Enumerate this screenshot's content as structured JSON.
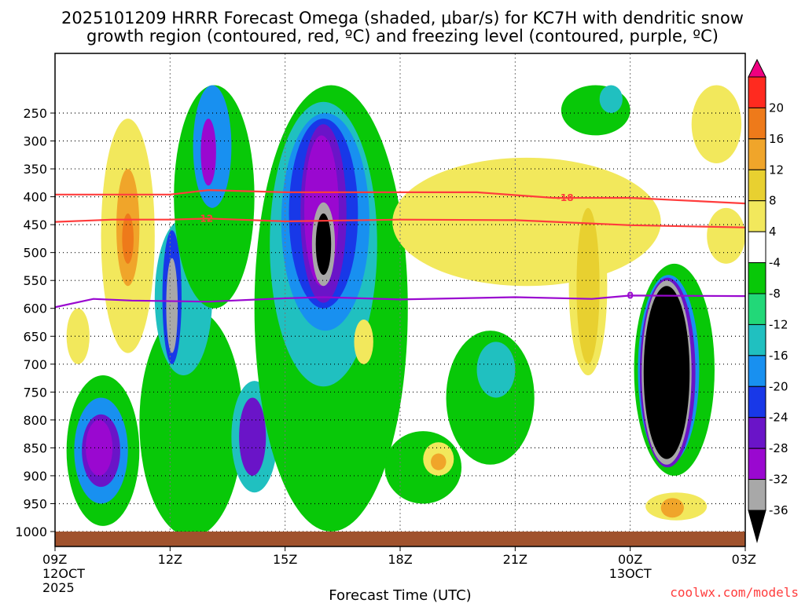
{
  "chart_data": {
    "type": "heatmap",
    "title_line1": "2025101209 HRRR Forecast Omega (shaded, μbar/s) for KC7H with dendritic snow",
    "title_line2": "growth region (contoured, red, ºC) and freezing level (contoured, purple, ºC)",
    "xlabel": "Forecast Time (UTC)",
    "ylabel": "",
    "credit": "coolwx.com/models",
    "x_ticks": [
      {
        "hour": 9,
        "label": "09Z",
        "sub1": "12OCT",
        "sub2": "2025"
      },
      {
        "hour": 12,
        "label": "12Z",
        "sub1": "",
        "sub2": ""
      },
      {
        "hour": 15,
        "label": "15Z",
        "sub1": "",
        "sub2": ""
      },
      {
        "hour": 18,
        "label": "18Z",
        "sub1": "",
        "sub2": ""
      },
      {
        "hour": 21,
        "label": "21Z",
        "sub1": "",
        "sub2": ""
      },
      {
        "hour": 24,
        "label": "00Z",
        "sub1": "13OCT",
        "sub2": ""
      },
      {
        "hour": 27,
        "label": "03Z",
        "sub1": "",
        "sub2": ""
      }
    ],
    "xlim": [
      9,
      27
    ],
    "y_ticks": [
      250,
      300,
      350,
      400,
      450,
      500,
      550,
      600,
      650,
      700,
      750,
      800,
      850,
      900,
      950,
      1000
    ],
    "ylim_hPa": [
      200,
      1020
    ],
    "colorbar": {
      "labels": [
        "20",
        "16",
        "12",
        "8",
        "4",
        "-4",
        "-8",
        "-12",
        "-16",
        "-20",
        "-24",
        "-28",
        "-32",
        "-36"
      ],
      "colors": [
        "#ef0080",
        "#ff2a1f",
        "#ee7a1a",
        "#f0a52a",
        "#e8d030",
        "#f2e85c",
        "#ffffff",
        "#08c808",
        "#22d878",
        "#20c0c0",
        "#1890f0",
        "#1838e8",
        "#6a14c8",
        "#9a08d0",
        "#a8a8a8",
        "#000000"
      ]
    },
    "contours": [
      {
        "name": "dgz-minus18",
        "label": "-18",
        "color": "#ff3c3c",
        "points": [
          [
            9,
            396
          ],
          [
            12,
            396
          ],
          [
            13,
            388
          ],
          [
            15,
            392
          ],
          [
            18,
            392
          ],
          [
            20,
            392
          ],
          [
            21,
            397
          ],
          [
            22,
            402
          ],
          [
            24,
            402
          ],
          [
            27,
            412
          ]
        ]
      },
      {
        "name": "dgz-minus12",
        "label": "-12",
        "color": "#ff3c3c",
        "points": [
          [
            9,
            445
          ],
          [
            10.5,
            441
          ],
          [
            12,
            441
          ],
          [
            13,
            439
          ],
          [
            15,
            444
          ],
          [
            16,
            443
          ],
          [
            18,
            441
          ],
          [
            21,
            442
          ],
          [
            24,
            451
          ],
          [
            27,
            455
          ]
        ]
      },
      {
        "name": "freezing-level-0",
        "label": "0",
        "color": "#9a08d0",
        "points": [
          [
            9,
            598
          ],
          [
            10,
            583
          ],
          [
            11,
            586
          ],
          [
            13,
            588
          ],
          [
            15,
            582
          ],
          [
            16,
            580
          ],
          [
            18,
            584
          ],
          [
            21,
            580
          ],
          [
            23,
            583
          ],
          [
            24,
            577
          ],
          [
            27,
            578
          ]
        ]
      }
    ],
    "blobs": [
      {
        "name": "ridge-11z",
        "x": [
          10.2,
          11.6
        ],
        "p": [
          260,
          680
        ],
        "v": 4
      },
      {
        "name": "ridge-11z-core",
        "x": [
          10.6,
          11.2
        ],
        "p": [
          350,
          560
        ],
        "v": 12
      },
      {
        "name": "ridge-11z-hot",
        "x": [
          10.75,
          11.05
        ],
        "p": [
          430,
          520
        ],
        "v": 16
      },
      {
        "name": "ridge-10z-low",
        "x": [
          9.3,
          9.9
        ],
        "p": [
          600,
          700
        ],
        "v": 4
      },
      {
        "name": "plume-12z",
        "x": [
          11.2,
          13.9
        ],
        "p": [
          600,
          1010
        ],
        "v": -8
      },
      {
        "name": "plume-12z-a",
        "x": [
          11.6,
          13.1
        ],
        "p": [
          440,
          720
        ],
        "v": -12
      },
      {
        "name": "plume-12z-b",
        "x": [
          11.8,
          12.3
        ],
        "p": [
          460,
          700
        ],
        "v": -20
      },
      {
        "name": "plume-12z-c",
        "x": [
          11.9,
          12.2
        ],
        "p": [
          510,
          680
        ],
        "v": -32
      },
      {
        "name": "plume-13z-top",
        "x": [
          12.1,
          14.2
        ],
        "p": [
          200,
          600
        ],
        "v": -8
      },
      {
        "name": "plume-13z-top-b",
        "x": [
          12.6,
          13.6
        ],
        "p": [
          200,
          420
        ],
        "v": -16
      },
      {
        "name": "plume-13z-core",
        "x": [
          12.8,
          13.2
        ],
        "p": [
          260,
          380
        ],
        "v": -28
      },
      {
        "name": "low-10z",
        "x": [
          9.3,
          11.2
        ],
        "p": [
          720,
          990
        ],
        "v": -8
      },
      {
        "name": "low-10z-a",
        "x": [
          9.5,
          10.9
        ],
        "p": [
          760,
          950
        ],
        "v": -16
      },
      {
        "name": "low-10z-b",
        "x": [
          9.7,
          10.7
        ],
        "p": [
          790,
          920
        ],
        "v": -24
      },
      {
        "name": "low-10z-c",
        "x": [
          9.8,
          10.5
        ],
        "p": [
          800,
          900
        ],
        "v": -28
      },
      {
        "name": "low-14z",
        "x": [
          13.6,
          14.8
        ],
        "p": [
          730,
          930
        ],
        "v": -12
      },
      {
        "name": "low-14z-b",
        "x": [
          13.8,
          14.5
        ],
        "p": [
          760,
          900
        ],
        "v": -24
      },
      {
        "name": "main-15z",
        "x": [
          14.2,
          18.2
        ],
        "p": [
          200,
          1000
        ],
        "v": -8
      },
      {
        "name": "main-15z-a",
        "x": [
          14.6,
          17.4
        ],
        "p": [
          230,
          740
        ],
        "v": -12
      },
      {
        "name": "main-15z-b",
        "x": [
          14.9,
          17.2
        ],
        "p": [
          250,
          640
        ],
        "v": -16
      },
      {
        "name": "main-15z-c",
        "x": [
          15.1,
          16.9
        ],
        "p": [
          260,
          600
        ],
        "v": -20
      },
      {
        "name": "main-15z-d",
        "x": [
          15.4,
          16.6
        ],
        "p": [
          270,
          590
        ],
        "v": -24
      },
      {
        "name": "main-15z-e",
        "x": [
          15.5,
          16.4
        ],
        "p": [
          290,
          560
        ],
        "v": -28
      },
      {
        "name": "main-15z-f",
        "x": [
          15.7,
          16.3
        ],
        "p": [
          410,
          560
        ],
        "v": -32
      },
      {
        "name": "main-15z-core",
        "x": [
          15.8,
          16.2
        ],
        "p": [
          430,
          540
        ],
        "v": -36
      },
      {
        "name": "dip-16z",
        "x": [
          16.8,
          17.3
        ],
        "p": [
          620,
          700
        ],
        "v": 4
      },
      {
        "name": "yellow-20z",
        "x": [
          17.8,
          24.8
        ],
        "p": [
          330,
          560
        ],
        "v": 4
      },
      {
        "name": "yellow-23z",
        "x": [
          22.4,
          23.4
        ],
        "p": [
          400,
          720
        ],
        "v": 4
      },
      {
        "name": "yellow-23z-b",
        "x": [
          22.6,
          23.2
        ],
        "p": [
          420,
          700
        ],
        "v": 8
      },
      {
        "name": "yellow-26z",
        "x": [
          25.6,
          26.9
        ],
        "p": [
          200,
          340
        ],
        "v": 4
      },
      {
        "name": "green-20z",
        "x": [
          19.2,
          21.5
        ],
        "p": [
          640,
          880
        ],
        "v": -8
      },
      {
        "name": "green-20z-b",
        "x": [
          20.0,
          21.0
        ],
        "p": [
          660,
          760
        ],
        "v": -12
      },
      {
        "name": "green-23z",
        "x": [
          22.2,
          24.0
        ],
        "p": [
          200,
          290
        ],
        "v": -8
      },
      {
        "name": "green-23z-b",
        "x": [
          23.2,
          23.8
        ],
        "p": [
          200,
          250
        ],
        "v": -12
      },
      {
        "name": "low-19z",
        "x": [
          17.6,
          19.6
        ],
        "p": [
          820,
          950
        ],
        "v": -8
      },
      {
        "name": "cell-19z",
        "x": [
          18.6,
          19.4
        ],
        "p": [
          840,
          900
        ],
        "v": 4
      },
      {
        "name": "cell-19z-b",
        "x": [
          18.8,
          19.2
        ],
        "p": [
          860,
          890
        ],
        "v": 12
      },
      {
        "name": "cell-01z",
        "x": [
          24.1,
          26.2
        ],
        "p": [
          520,
          900
        ],
        "v": -8
      },
      {
        "name": "cell-01z-a",
        "x": [
          24.2,
          25.8
        ],
        "p": [
          540,
          880
        ],
        "v": -16
      },
      {
        "name": "cell-01z-b",
        "x": [
          24.25,
          25.7
        ],
        "p": [
          545,
          885
        ],
        "v": -24
      },
      {
        "name": "cell-01z-c",
        "x": [
          24.3,
          25.6
        ],
        "p": [
          550,
          880
        ],
        "v": -32
      },
      {
        "name": "cell-01z-core",
        "x": [
          24.35,
          25.55
        ],
        "p": [
          560,
          870
        ],
        "v": -36
      },
      {
        "name": "cell-01z-low",
        "x": [
          24.4,
          26.0
        ],
        "p": [
          930,
          980
        ],
        "v": 4
      },
      {
        "name": "cell-01z-low-b",
        "x": [
          24.8,
          25.4
        ],
        "p": [
          940,
          975
        ],
        "v": 12
      },
      {
        "name": "yellow-02z",
        "x": [
          26.0,
          27.0
        ],
        "p": [
          420,
          520
        ],
        "v": 4
      }
    ]
  }
}
